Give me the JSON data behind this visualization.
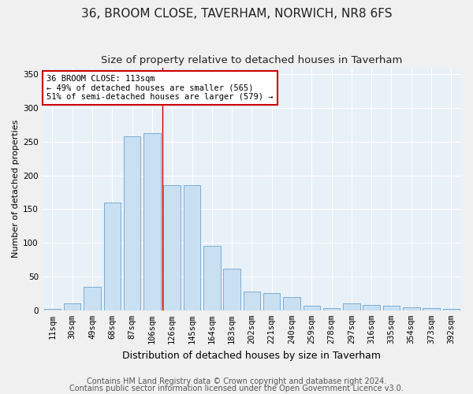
{
  "title": "36, BROOM CLOSE, TAVERHAM, NORWICH, NR8 6FS",
  "subtitle": "Size of property relative to detached houses in Taverham",
  "xlabel": "Distribution of detached houses by size in Taverham",
  "ylabel": "Number of detached properties",
  "categories": [
    "11sqm",
    "30sqm",
    "49sqm",
    "68sqm",
    "87sqm",
    "106sqm",
    "126sqm",
    "145sqm",
    "164sqm",
    "183sqm",
    "202sqm",
    "221sqm",
    "240sqm",
    "259sqm",
    "278sqm",
    "297sqm",
    "316sqm",
    "335sqm",
    "354sqm",
    "373sqm",
    "392sqm"
  ],
  "values": [
    2,
    10,
    35,
    160,
    258,
    263,
    185,
    185,
    95,
    62,
    28,
    25,
    20,
    7,
    3,
    10,
    8,
    7,
    5,
    3,
    2
  ],
  "bar_color": "#c9dff2",
  "bar_edge_color": "#7bafd4",
  "property_line_x": 5.5,
  "annotation_line1": "36 BROOM CLOSE: 113sqm",
  "annotation_line2": "← 49% of detached houses are smaller (565)",
  "annotation_line3": "51% of semi-detached houses are larger (579) →",
  "annotation_box_color": "#ffffff",
  "annotation_box_edge": "#cc0000",
  "vline_color": "#cc0000",
  "footer1": "Contains HM Land Registry data © Crown copyright and database right 2024.",
  "footer2": "Contains public sector information licensed under the Open Government Licence v3.0.",
  "ylim": [
    0,
    360
  ],
  "yticks": [
    0,
    50,
    100,
    150,
    200,
    250,
    300,
    350
  ],
  "fig_bg": "#f0f0f0",
  "plot_bg": "#e8f0f8",
  "grid_color": "#ffffff",
  "title_fontsize": 11,
  "subtitle_fontsize": 9.5,
  "xlabel_fontsize": 9,
  "ylabel_fontsize": 8,
  "tick_fontsize": 7.5,
  "annot_fontsize": 7.5,
  "footer_fontsize": 7
}
